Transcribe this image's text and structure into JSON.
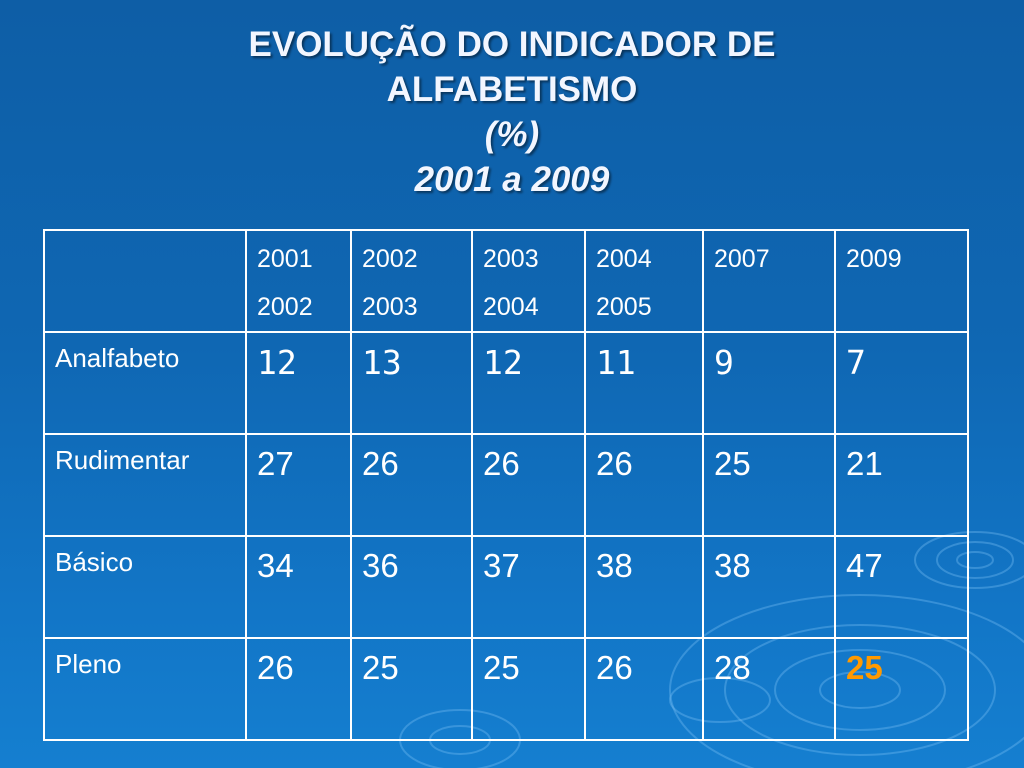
{
  "title": {
    "line1": "EVOLUÇÃO DO INDICADOR DE",
    "line2": "ALFABETISMO",
    "line3": "(%)",
    "line4": "2001 a 2009"
  },
  "table": {
    "headers": [
      {
        "top": "2001",
        "bottom": "2002"
      },
      {
        "top": "2002",
        "bottom": "2003"
      },
      {
        "top": "2003",
        "bottom": "2004"
      },
      {
        "top": "2004",
        "bottom": "2005"
      },
      {
        "top": "2007",
        "bottom": ""
      },
      {
        "top": "2009",
        "bottom": ""
      }
    ],
    "rows": [
      {
        "label": "Analfabeto",
        "values": [
          "12",
          "13",
          "12",
          "11",
          "9",
          "7"
        ]
      },
      {
        "label": "Rudimentar",
        "values": [
          "27",
          "26",
          "26",
          "26",
          "25",
          "21"
        ]
      },
      {
        "label": "Básico",
        "values": [
          "34",
          "36",
          "37",
          "38",
          "38",
          "47"
        ]
      },
      {
        "label": "Pleno",
        "values": [
          "26",
          "25",
          "25",
          "26",
          "28",
          "25"
        ]
      }
    ],
    "highlight_color": "#ff9900"
  }
}
